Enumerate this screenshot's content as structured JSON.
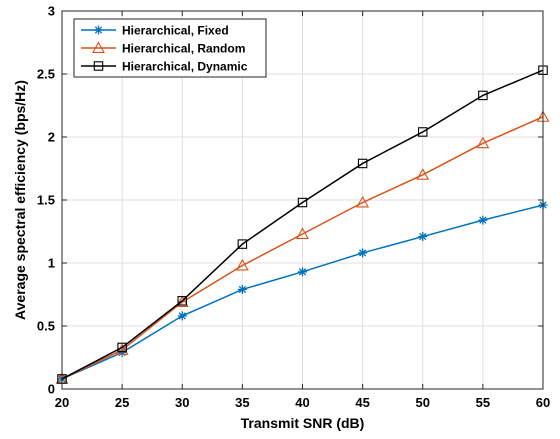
{
  "chart_data": {
    "type": "line",
    "xlabel": "Transmit SNR (dB)",
    "ylabel": "Average spectral efficiency (bps/Hz)",
    "xlim": [
      20,
      60
    ],
    "ylim": [
      0,
      3
    ],
    "xticks": [
      20,
      25,
      30,
      35,
      40,
      45,
      50,
      55,
      60
    ],
    "yticks": [
      0,
      0.5,
      1,
      1.5,
      2,
      2.5,
      3
    ],
    "ytick_labels": [
      "0",
      "0.5",
      "1",
      "1.5",
      "2",
      "2.5",
      "3"
    ],
    "grid": true,
    "legend_position": "top-left",
    "x": [
      20,
      25,
      30,
      35,
      40,
      45,
      50,
      55,
      60
    ],
    "series": [
      {
        "name": "Hierarchical, Fixed",
        "color": "#0072BD",
        "marker": "asterisk",
        "values": [
          0.08,
          0.29,
          0.58,
          0.79,
          0.93,
          1.08,
          1.21,
          1.34,
          1.46
        ]
      },
      {
        "name": "Hierarchical, Random",
        "color": "#D95319",
        "marker": "triangle",
        "values": [
          0.08,
          0.31,
          0.69,
          0.98,
          1.23,
          1.48,
          1.7,
          1.95,
          2.16
        ]
      },
      {
        "name": "Hierarchical, Dynamic",
        "color": "#000000",
        "marker": "square",
        "values": [
          0.08,
          0.33,
          0.7,
          1.15,
          1.48,
          1.79,
          2.04,
          2.33,
          2.53
        ]
      }
    ]
  }
}
